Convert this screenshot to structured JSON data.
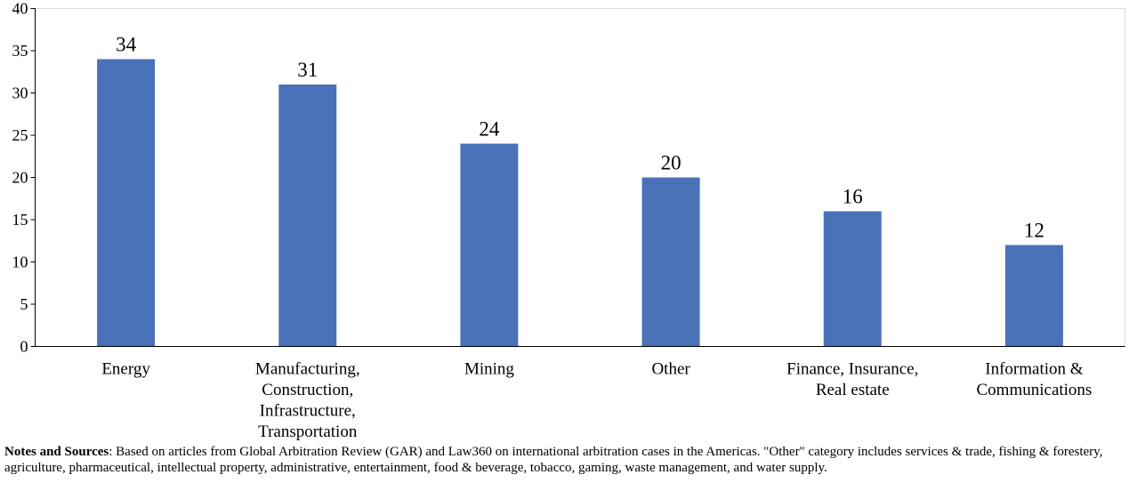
{
  "chart_data": {
    "type": "bar",
    "categories": [
      [
        "Energy"
      ],
      [
        "Manufacturing,",
        "Construction,",
        "Infrastructure,",
        "Transportation"
      ],
      [
        "Mining"
      ],
      [
        "Other"
      ],
      [
        "Finance, Insurance,",
        "Real estate"
      ],
      [
        "Information &",
        "Communications"
      ]
    ],
    "values": [
      34,
      31,
      24,
      20,
      16,
      12
    ],
    "ylim": [
      0,
      40
    ],
    "yticks": [
      0,
      5,
      10,
      15,
      20,
      25,
      30,
      35,
      40
    ],
    "bar_color": "#4A72B8",
    "grid": false,
    "legend": "none",
    "data_labels": true
  },
  "notes": {
    "heading": "Notes and Sources",
    "text": ": Based on articles from Global Arbitration Review (GAR) and Law360 on international arbitration cases in the Americas. \"Other\" category includes services & trade, fishing & forestery, agriculture, pharmaceutical, intellectual property, administrative, entertainment, food & beverage, tobacco, gaming, waste management, and water supply."
  }
}
